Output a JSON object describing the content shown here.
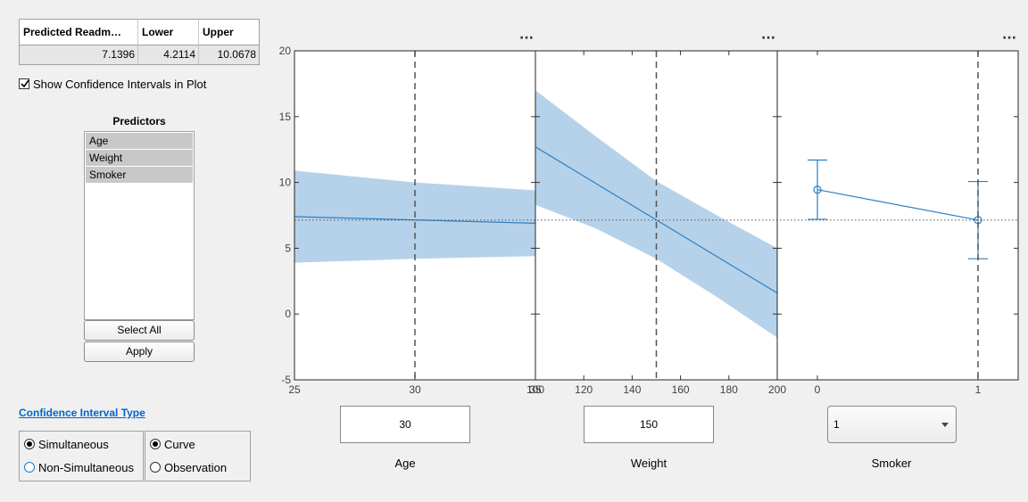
{
  "prediction_table": {
    "headers": [
      "Predicted Readm…",
      "Lower",
      "Upper"
    ],
    "values": [
      "7.1396",
      "4.2114",
      "10.0678"
    ]
  },
  "show_ci_checkbox": {
    "label": "Show Confidence Intervals in Plot",
    "checked": true
  },
  "predictors": {
    "title": "Predictors",
    "items": [
      "Age",
      "Weight",
      "Smoker"
    ],
    "select_all_label": "Select All",
    "apply_label": "Apply"
  },
  "ci_type": {
    "link_label": "Confidence Interval Type",
    "group1": {
      "options": [
        "Simultaneous",
        "Non-Simultaneous"
      ],
      "selected": "Simultaneous"
    },
    "group2": {
      "options": [
        "Curve",
        "Observation"
      ],
      "selected": "Curve"
    }
  },
  "panels": [
    {
      "name": "Age",
      "value": "30"
    },
    {
      "name": "Weight",
      "value": "150"
    },
    {
      "name": "Smoker",
      "value": "1"
    }
  ],
  "panel_menu_glyph": "···",
  "colors": {
    "band": "#b6d2ea",
    "line": "#2f7fc1",
    "accent": "#0066cc"
  },
  "chart_data": {
    "type": "line",
    "y_axis": {
      "range": [
        -5,
        20
      ],
      "ticks": [
        -5,
        0,
        5,
        10,
        15,
        20
      ]
    },
    "reference_line_y": 7.1396,
    "panels": [
      {
        "x_range": [
          25,
          35
        ],
        "x_ticks": [
          "25",
          "30",
          "35"
        ],
        "current_x": 30,
        "line": {
          "x": [
            25,
            35
          ],
          "y": [
            7.4,
            6.9
          ]
        },
        "band_upper": {
          "x": [
            25,
            30,
            35
          ],
          "y": [
            10.9,
            10.0,
            9.4
          ]
        },
        "band_lower": {
          "x": [
            25,
            30,
            35
          ],
          "y": [
            3.9,
            4.2,
            4.4
          ]
        }
      },
      {
        "x_range": [
          100,
          200
        ],
        "x_ticks": [
          "100",
          "120",
          "140",
          "160",
          "180",
          "200"
        ],
        "current_x": 150,
        "line": {
          "x": [
            100,
            200
          ],
          "y": [
            12.7,
            1.6
          ]
        },
        "band_upper": {
          "x": [
            100,
            125,
            150,
            175,
            200
          ],
          "y": [
            17.0,
            13.5,
            10.1,
            7.5,
            5.0
          ]
        },
        "band_lower": {
          "x": [
            100,
            125,
            150,
            175,
            200
          ],
          "y": [
            8.3,
            6.5,
            4.2,
            1.3,
            -1.8
          ]
        }
      },
      {
        "x_categories": [
          "0",
          "1"
        ],
        "current_x": "1",
        "points": [
          {
            "x": "0",
            "y": 9.45,
            "lower": 7.2,
            "upper": 11.7
          },
          {
            "x": "1",
            "y": 7.14,
            "lower": 4.2,
            "upper": 10.07
          }
        ]
      }
    ]
  }
}
